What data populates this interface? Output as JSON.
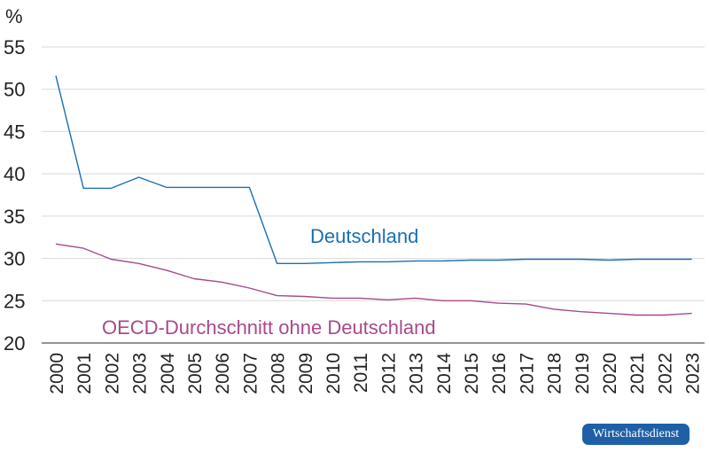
{
  "chart_data": {
    "type": "line",
    "unit": "%",
    "categories": [
      "2000",
      "2001",
      "2002",
      "2003",
      "2004",
      "2005",
      "2006",
      "2007",
      "2008",
      "2009",
      "2010",
      "2011",
      "2012",
      "2013",
      "2014",
      "2015",
      "2016",
      "2017",
      "2018",
      "2019",
      "2020",
      "2021",
      "2022",
      "2023"
    ],
    "ylim": [
      20,
      55
    ],
    "yticks": [
      "20",
      "25",
      "30",
      "35",
      "40",
      "45",
      "50",
      "55"
    ],
    "grid": "horizontal",
    "series": [
      {
        "name": "Deutschland",
        "color": "#1a6fb3",
        "values": [
          51.6,
          38.3,
          38.3,
          39.6,
          38.4,
          38.4,
          38.4,
          38.4,
          29.4,
          29.4,
          29.5,
          29.6,
          29.6,
          29.7,
          29.7,
          29.8,
          29.8,
          29.9,
          29.9,
          29.9,
          29.8,
          29.9,
          29.9,
          29.9
        ]
      },
      {
        "name": "OECD-Durchschnitt ohne Deutschland",
        "color": "#a8498a",
        "values": [
          31.7,
          31.2,
          29.9,
          29.4,
          28.6,
          27.6,
          27.2,
          26.5,
          25.6,
          25.5,
          25.3,
          25.3,
          25.1,
          25.3,
          25.0,
          25.0,
          24.7,
          24.6,
          24.0,
          23.7,
          23.5,
          23.3,
          23.3,
          23.5
        ]
      }
    ]
  },
  "footer": {
    "badge_label": "Wirtschaftsdienst",
    "badge_color": "#1f5fa6"
  }
}
